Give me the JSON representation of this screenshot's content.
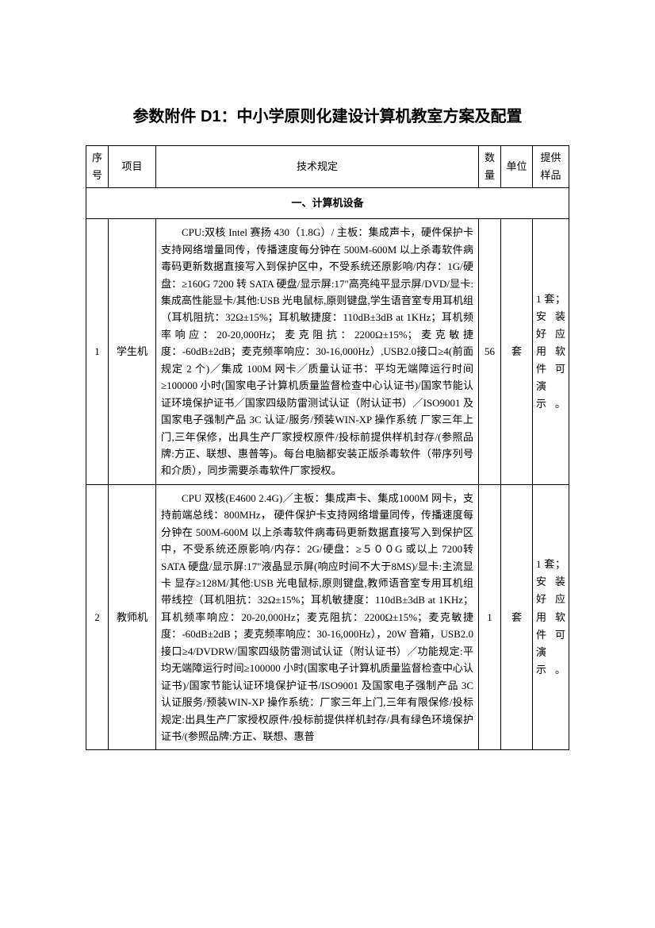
{
  "title": "参数附件 D1：中小学原则化建设计算机教室方案及配置",
  "headers": {
    "seq": "序号",
    "item": "项目",
    "spec": "技术规定",
    "qty": "数量",
    "unit": "单位",
    "sample": "提供样品"
  },
  "section1": "一、计算机设备",
  "rows": [
    {
      "seq": "1",
      "item": "学生机",
      "spec": "CPU:双核 Intel 赛扬 430（1.8G）/ 主板：集成声卡，硬件保护卡支持网络增量同传，传播速度每分钟在 500M-600M 以上杀毒软件病毒码更新数据直接写入到保护区中，不受系统还原影响/内存：1G/硬盘：≥160G 7200 转 SATA 硬盘/显示屏:17\"高亮纯平显示屏/DVD/显卡:集成高性能显卡/其他:USB 光电鼠标,原则键盘,学生语音室专用耳机组（耳机阻抗：32Ω±15%；耳机敏捷度：110dB±3dB at 1KHz；耳机频率响应：20-20,000Hz；麦克阻抗：2200Ω±15%；麦克敏捷度：-60dB±2dB；麦克频率响应：30-16,000Hz）,USB2.0接口≥4(前面规定 2 个)／集成 100M 网卡／质量认证书：平均无端障运行时间≥100000 小时(国家电子计算机质量监督检查中心认证书)/国家节能认证环境保护证书／国家四级防雷测试认证（附认证书）／ISO9001 及国家电子强制产品 3C 认证/服务/预装WIN-XP 操作系统 厂家三年上门,三年保修，出具生产厂家授权原件/投标前提供样机封存/(参照品牌:方正、联想、惠普等)。每台电脑都安装正版杀毒软件（带序列号和介质），同步需要杀毒软件厂家授权。",
      "qty": "56",
      "unit": "套",
      "sample": "1 套；安 装好 应用 软件 可演示。"
    },
    {
      "seq": "2",
      "item": "教师机",
      "spec": "CPU 双核(E4600 2.4G)／主板：集成声卡、集成1000M 网卡，支持前端总线：800MHz， 硬件保护卡支持网络增量同传，传播速度每分钟在 500M-600M 以上杀毒软件病毒码更新数据直接写入到保护区中，不受系统还原影响/内存：2G/硬盘：≥５００G 或以上 7200转 SATA 硬盘/显示屏:17\"液晶显示屏(响应时间不大于8MS)/显卡:主流显卡 显存≥128M/其他:USB 光电鼠标,原则键盘,教师语音室专用耳机组带线控（耳机阻抗：32Ω±15%；耳机敏捷度：110dB±3dB at 1KHz；耳机频率响应：20-20,000Hz；麦克阻抗：2200Ω±15%；麦克敏捷度：-60dB±2dB ；麦克频率响应：30-16,000Hz），20W 音箱，USB2.0 接口≥4/DVDRW/国家四级防雷测试认证（附认证书）／功能规定:平均无端障运行时间≥100000 小时(国家电子计算机质量监督检查中心认证书)/国家节能认证环境保护证书/ISO9001 及国家电子强制产品 3C 认证服务/预装WIN-XP 操作系统：厂家三年上门,三年有限保修/投标规定:出具生产厂家授权原件/投标前提供样机封存/具有绿色环境保护证书/(参照品牌:方正、联想、惠普",
      "qty": "1",
      "unit": "套",
      "sample": "1 套；安 装好 应用 软件 可演示。"
    }
  ]
}
